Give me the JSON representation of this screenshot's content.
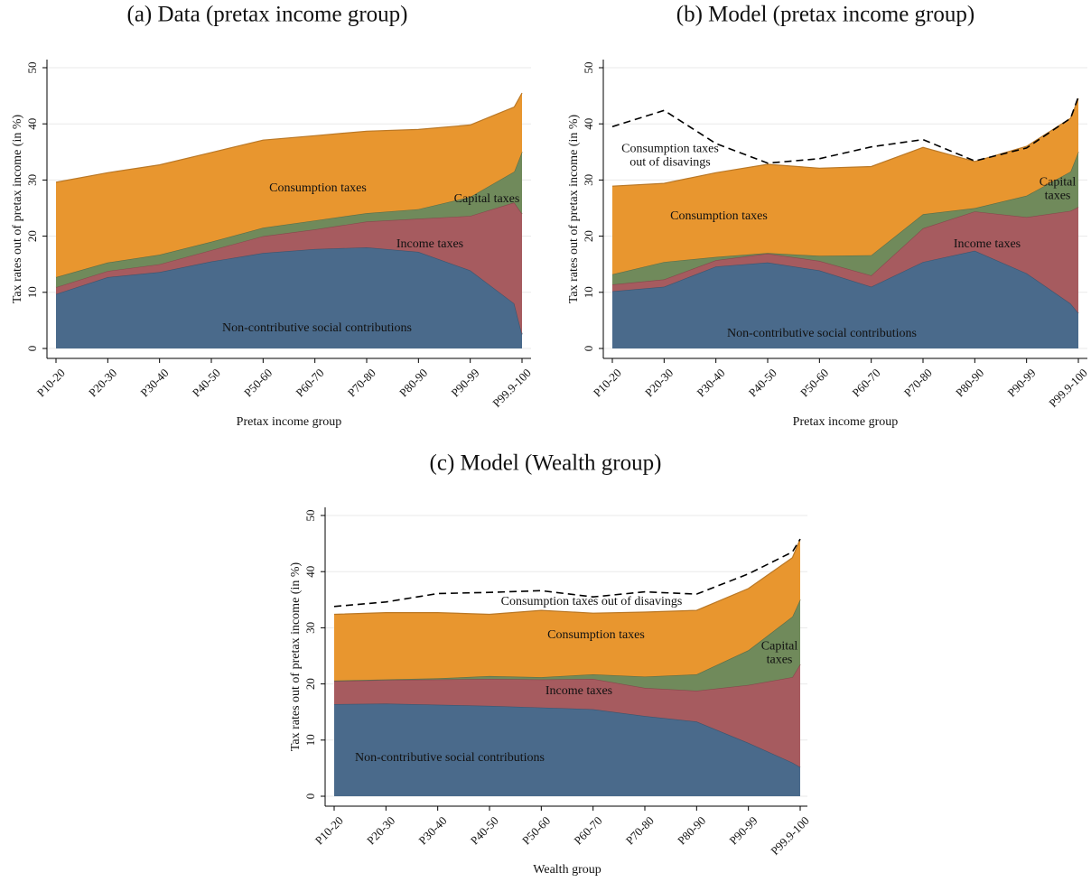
{
  "chart_data": [
    {
      "type": "area",
      "stacked": true,
      "grid": true,
      "title": "(a) Data (pretax income group)",
      "xlabel": "Pretax income group",
      "ylabel": "Tax rates out of pretax income (in %)",
      "x": [
        1,
        2,
        3,
        4,
        5,
        6,
        7,
        8,
        9,
        9.85,
        10
      ],
      "xlim": [
        1,
        10
      ],
      "xticks": [
        {
          "value": 1,
          "label": "P10-20"
        },
        {
          "value": 2,
          "label": "P20-30"
        },
        {
          "value": 3,
          "label": "P30-40"
        },
        {
          "value": 4,
          "label": "P40-50"
        },
        {
          "value": 5,
          "label": "P50-60"
        },
        {
          "value": 6,
          "label": "P60-70"
        },
        {
          "value": 7,
          "label": "P70-80"
        },
        {
          "value": 8,
          "label": "P80-90"
        },
        {
          "value": 9,
          "label": "P90-99"
        },
        {
          "value": 10,
          "label": "P99.9-100"
        }
      ],
      "ylim": [
        0,
        50
      ],
      "yticks": [
        0,
        10,
        20,
        30,
        40,
        50
      ],
      "series": [
        {
          "name": "Non-contributive social contributions",
          "color": "#4a6a8b",
          "values": [
            9.7,
            12.7,
            13.6,
            15.5,
            17,
            17.7,
            18,
            17.2,
            13.9,
            8,
            2.5
          ]
        },
        {
          "name": "Income taxes",
          "color": "#a65b5f",
          "values": [
            1.2,
            1.1,
            1.4,
            2,
            3,
            3.5,
            4.6,
            5.9,
            9.7,
            18,
            21.5
          ]
        },
        {
          "name": "Capital taxes",
          "color": "#708a5b",
          "values": [
            1.8,
            1.5,
            1.7,
            1.5,
            1.5,
            1.6,
            1.5,
            1.7,
            3.4,
            5.5,
            11
          ]
        },
        {
          "name": "Consumption taxes",
          "color": "#e8962f",
          "values": [
            16.9,
            16,
            16,
            15.9,
            15.6,
            15.1,
            14.6,
            14.2,
            12.8,
            11.5,
            10.5
          ]
        }
      ]
    },
    {
      "type": "area",
      "stacked": true,
      "grid": true,
      "title": "(b) Model (pretax income group)",
      "xlabel": "Pretax income group",
      "ylabel": "Tax rates out of pretax income (in %)",
      "x": [
        1,
        2,
        3,
        4,
        5,
        6,
        7,
        8,
        9,
        9.85,
        10
      ],
      "xlim": [
        1,
        10
      ],
      "xticks": [
        {
          "value": 1,
          "label": "P10-20"
        },
        {
          "value": 2,
          "label": "P20-30"
        },
        {
          "value": 3,
          "label": "P30-40"
        },
        {
          "value": 4,
          "label": "P40-50"
        },
        {
          "value": 5,
          "label": "P50-60"
        },
        {
          "value": 6,
          "label": "P60-70"
        },
        {
          "value": 7,
          "label": "P70-80"
        },
        {
          "value": 8,
          "label": "P80-90"
        },
        {
          "value": 9,
          "label": "P90-99"
        },
        {
          "value": 10,
          "label": "P99.9-100"
        }
      ],
      "ylim": [
        0,
        50
      ],
      "yticks": [
        0,
        10,
        20,
        30,
        40,
        50
      ],
      "series": [
        {
          "name": "Non-contributive social contributions",
          "color": "#4a6a8b",
          "values": [
            10.2,
            11,
            14.6,
            15.3,
            13.9,
            11,
            15.4,
            17.4,
            13.4,
            8,
            6.3
          ]
        },
        {
          "name": "Income taxes",
          "color": "#a65b5f",
          "values": [
            1.2,
            1.3,
            1.1,
            1.6,
            1.7,
            2,
            6,
            7,
            10,
            16.5,
            18.9
          ]
        },
        {
          "name": "Capital\ntaxes",
          "color": "#708a5b",
          "values": [
            1.8,
            3.1,
            0.6,
            0.1,
            0.9,
            3.6,
            2.5,
            0.6,
            3.8,
            7,
            9.8
          ]
        },
        {
          "name": "Consumption taxes",
          "color": "#e8962f",
          "values": [
            15.7,
            14,
            15,
            15.8,
            15.6,
            15.8,
            11.9,
            8.3,
            8.8,
            9.5,
            9.5
          ]
        },
        {
          "name": "Consumption taxes\nout of disavings",
          "type": "line",
          "style": "dashed",
          "color": "#000000",
          "values": [
            39.5,
            42.4,
            36.5,
            33,
            33.8,
            35.9,
            37.2,
            33.4,
            35.7,
            41,
            44.8
          ]
        }
      ]
    },
    {
      "type": "area",
      "stacked": true,
      "grid": true,
      "title": "(c) Model (Wealth group)",
      "xlabel": "Wealth group",
      "ylabel": "Tax rates out of pretax income (in %)",
      "x": [
        1,
        2,
        3,
        4,
        5,
        6,
        7,
        8,
        9,
        9.85,
        10
      ],
      "xlim": [
        1,
        10
      ],
      "xticks": [
        {
          "value": 1,
          "label": "P10-20"
        },
        {
          "value": 2,
          "label": "P20-30"
        },
        {
          "value": 3,
          "label": "P30-40"
        },
        {
          "value": 4,
          "label": "P40-50"
        },
        {
          "value": 5,
          "label": "P50-60"
        },
        {
          "value": 6,
          "label": "P60-70"
        },
        {
          "value": 7,
          "label": "P70-80"
        },
        {
          "value": 8,
          "label": "P80-90"
        },
        {
          "value": 9,
          "label": "P90-99"
        },
        {
          "value": 10,
          "label": "P99.9-100"
        }
      ],
      "ylim": [
        0,
        50
      ],
      "yticks": [
        0,
        10,
        20,
        30,
        40,
        50
      ],
      "series": [
        {
          "name": "Non-contributive social contributions",
          "color": "#4a6a8b",
          "values": [
            16.4,
            16.5,
            16.3,
            16.1,
            15.8,
            15.5,
            14.3,
            13.3,
            9.5,
            6,
            5.2
          ]
        },
        {
          "name": "Income taxes",
          "color": "#a65b5f",
          "values": [
            4.1,
            4.2,
            4.5,
            4.8,
            5,
            5.4,
            5,
            5.5,
            10.3,
            15.2,
            18.3
          ]
        },
        {
          "name": "Capital\ntaxes",
          "color": "#708a5b",
          "values": [
            0.1,
            0.1,
            0.2,
            0.5,
            0.4,
            0.8,
            2,
            2.9,
            6.2,
            10.8,
            11.5
          ]
        },
        {
          "name": "Consumption taxes",
          "color": "#e8962f",
          "values": [
            11.8,
            11.9,
            11.7,
            11,
            11.9,
            10.9,
            11.5,
            11.4,
            11,
            10.5,
            10.8
          ]
        },
        {
          "name": "Consumption taxes out of disavings",
          "type": "line",
          "style": "dashed",
          "color": "#000000",
          "values": [
            33.8,
            34.6,
            36.1,
            36.3,
            36.6,
            35.5,
            36.4,
            36,
            39.6,
            43.5,
            45.8
          ]
        }
      ]
    }
  ]
}
